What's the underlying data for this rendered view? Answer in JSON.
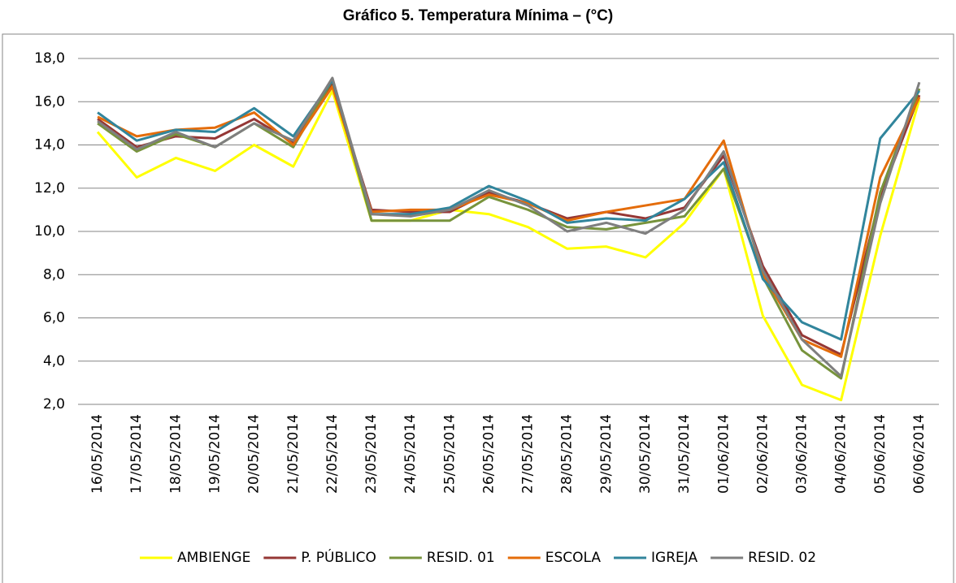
{
  "chart_data": {
    "type": "line",
    "title": "Gráfico 5. Temperatura Mínima – (°C)",
    "categories": [
      "16/05/2014",
      "17/05/2014",
      "18/05/2014",
      "19/05/2014",
      "20/05/2014",
      "21/05/2014",
      "22/05/2014",
      "23/05/2014",
      "24/05/2014",
      "25/05/2014",
      "26/05/2014",
      "27/05/2014",
      "28/05/2014",
      "29/05/2014",
      "30/05/2014",
      "31/05/2014",
      "01/06/2014",
      "02/06/2014",
      "03/06/2014",
      "04/06/2014",
      "05/06/2014",
      "06/06/2014"
    ],
    "series": [
      {
        "name": "AMBIENGE",
        "color": "#ffff00",
        "values": [
          14.6,
          12.5,
          13.4,
          12.8,
          14.0,
          13.0,
          16.5,
          10.5,
          10.5,
          11.0,
          10.8,
          10.2,
          9.2,
          9.3,
          8.8,
          10.4,
          12.9,
          6.1,
          2.9,
          2.2,
          9.8,
          16.1
        ]
      },
      {
        "name": "P. PÚBLICO",
        "color": "#953735",
        "values": [
          15.2,
          13.9,
          14.4,
          14.3,
          15.2,
          14.1,
          16.8,
          11.0,
          10.9,
          10.9,
          11.8,
          11.3,
          10.6,
          10.9,
          10.6,
          11.1,
          13.5,
          8.4,
          5.2,
          4.3,
          11.6,
          16.3
        ]
      },
      {
        "name": "RESID. 01",
        "color": "#77933c",
        "values": [
          15.0,
          13.7,
          14.5,
          13.9,
          15.0,
          13.9,
          17.0,
          10.5,
          10.5,
          10.5,
          11.6,
          11.0,
          10.2,
          10.1,
          10.4,
          10.7,
          12.9,
          7.9,
          4.5,
          3.2,
          11.8,
          16.6
        ]
      },
      {
        "name": "ESCOLA",
        "color": "#e46c0a",
        "values": [
          15.3,
          14.4,
          14.7,
          14.8,
          15.5,
          14.0,
          16.7,
          10.9,
          11.0,
          11.0,
          11.7,
          11.3,
          10.5,
          10.9,
          11.2,
          11.5,
          14.2,
          8.0,
          5.0,
          4.2,
          12.5,
          16.2
        ]
      },
      {
        "name": "IGREJA",
        "color": "#31859c",
        "values": [
          15.5,
          14.2,
          14.7,
          14.6,
          15.7,
          14.4,
          17.0,
          10.8,
          10.8,
          11.1,
          12.1,
          11.4,
          10.4,
          10.6,
          10.5,
          11.5,
          13.2,
          7.8,
          5.8,
          5.0,
          14.3,
          16.5
        ]
      },
      {
        "name": "RESID. 02",
        "color": "#7f7f7f",
        "values": [
          15.1,
          13.8,
          14.6,
          13.9,
          15.0,
          14.2,
          17.1,
          10.8,
          10.7,
          11.0,
          11.9,
          11.2,
          10.0,
          10.4,
          9.9,
          11.0,
          13.7,
          8.2,
          5.0,
          3.3,
          11.3,
          16.9
        ]
      }
    ],
    "ylim": [
      2,
      18
    ],
    "yticks": [
      {
        "value": 2,
        "label": "2,0"
      },
      {
        "value": 4,
        "label": "4,0"
      },
      {
        "value": 6,
        "label": "6,0"
      },
      {
        "value": 8,
        "label": "8,0"
      },
      {
        "value": 10,
        "label": "10,0"
      },
      {
        "value": 12,
        "label": "12,0"
      },
      {
        "value": 14,
        "label": "14,0"
      },
      {
        "value": 16,
        "label": "16,0"
      },
      {
        "value": 18,
        "label": "18,0"
      }
    ],
    "grid": true,
    "legend": "bottom"
  }
}
